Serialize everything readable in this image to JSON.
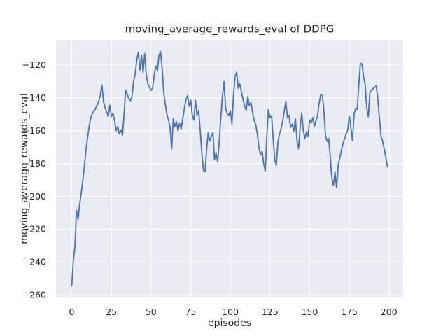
{
  "title": "moving_average_rewards_eval of DDPG",
  "xlabel": "episodes",
  "ylabel": "moving_average_rewards_eval",
  "chart_data": {
    "type": "line",
    "title": "moving_average_rewards_eval of DDPG",
    "xlabel": "episodes",
    "ylabel": "moving_average_rewards_eval",
    "legend": "none",
    "grid": true,
    "style": "seaborn-darkgrid",
    "background": "#eaeaf2",
    "grid_color": "#ffffff",
    "line_color": "#4c72b0",
    "text_color": "#262626",
    "x_ticks": [
      0,
      25,
      50,
      75,
      100,
      125,
      150,
      175,
      200
    ],
    "y_ticks": [
      -120,
      -140,
      -160,
      -180,
      -200,
      -220,
      -240,
      -260
    ],
    "xlim": [
      -9.95,
      208.95
    ],
    "ylim": [
      -261.6,
      -104.7
    ],
    "series": [
      {
        "name": "moving_average_rewards_eval",
        "x_start": 0,
        "x_step": 1,
        "values": [
          -254.5,
          -239,
          -230.5,
          -208.5,
          -214,
          -204.5,
          -198,
          -190,
          -181,
          -171.5,
          -164,
          -157,
          -152,
          -149.5,
          -148,
          -146.5,
          -144.5,
          -142,
          -138.5,
          -132.2,
          -142,
          -146,
          -148.5,
          -151.2,
          -144.5,
          -151.3,
          -149.5,
          -153.5,
          -160,
          -157.5,
          -162,
          -159.5,
          -162.7,
          -150,
          -135.2,
          -138,
          -140.5,
          -141.8,
          -139,
          -130,
          -125.5,
          -117,
          -112.3,
          -123,
          -114,
          -124.5,
          -113,
          -126,
          -131.5,
          -133.5,
          -135.5,
          -134,
          -126,
          -120.5,
          -123.5,
          -114,
          -111.8,
          -122,
          -137,
          -144,
          -150,
          -153.5,
          -158,
          -171,
          -152.5,
          -157.5,
          -154.5,
          -160,
          -155.5,
          -159,
          -152.5,
          -146.5,
          -141,
          -138.6,
          -145,
          -141.4,
          -150.6,
          -153.5,
          -141.4,
          -150.6,
          -147.7,
          -160,
          -173,
          -184,
          -185,
          -172,
          -161.3,
          -166.2,
          -163.5,
          -161.3,
          -177.6,
          -173.4,
          -179,
          -166,
          -152,
          -139.3,
          -130.1,
          -146,
          -149.5,
          -150.6,
          -147.7,
          -155.6,
          -138,
          -127,
          -124.4,
          -134.3,
          -131.5,
          -136.5,
          -141,
          -145,
          -147.5,
          -139.3,
          -144.9,
          -142.8,
          -149,
          -153.5,
          -156.3,
          -162,
          -169.8,
          -174.8,
          -172.5,
          -180,
          -184.7,
          -164,
          -147.1,
          -152,
          -150.6,
          -165,
          -178,
          -181,
          -167,
          -162,
          -158.5,
          -154,
          -148,
          -142.1,
          -152,
          -150.6,
          -158,
          -156,
          -160.5,
          -152.5,
          -166,
          -171,
          -158,
          -149.2,
          -160,
          -164.8,
          -160.6,
          -163.4,
          -153.5,
          -155.2,
          -152,
          -157.5,
          -154,
          -150.5,
          -143,
          -138,
          -138.5,
          -147.8,
          -163,
          -166.5,
          -164.8,
          -176,
          -189,
          -193.2,
          -185,
          -194.6,
          -181,
          -176.5,
          -172,
          -168,
          -165,
          -162,
          -159.5,
          -151,
          -158,
          -166,
          -150,
          -146.4,
          -147,
          -131.5,
          -119,
          -119.5,
          -127.2,
          -131.9,
          -146,
          -151.5,
          -136.5,
          -135.2,
          -134.5,
          -133.5,
          -132.6,
          -141,
          -152,
          -163.5,
          -166.5,
          -171,
          -176,
          -182
        ]
      }
    ]
  }
}
